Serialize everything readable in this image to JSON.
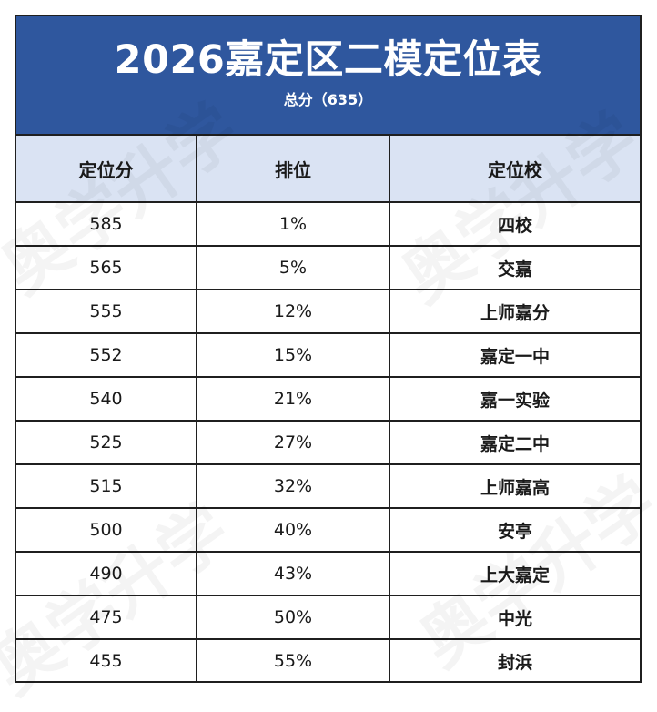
{
  "header": {
    "title": "2026嘉定区二模定位表",
    "subtitle": "总分（635）"
  },
  "table": {
    "columns": [
      "定位分",
      "排位",
      "定位校"
    ],
    "rows": [
      {
        "score": "585",
        "rank": "1%",
        "school": "四校"
      },
      {
        "score": "565",
        "rank": "5%",
        "school": "交嘉"
      },
      {
        "score": "555",
        "rank": "12%",
        "school": "上师嘉分"
      },
      {
        "score": "552",
        "rank": "15%",
        "school": "嘉定一中"
      },
      {
        "score": "540",
        "rank": "21%",
        "school": "嘉一实验"
      },
      {
        "score": "525",
        "rank": "27%",
        "school": "嘉定二中"
      },
      {
        "score": "515",
        "rank": "32%",
        "school": "上师嘉高"
      },
      {
        "score": "500",
        "rank": "40%",
        "school": "安亭"
      },
      {
        "score": "490",
        "rank": "43%",
        "school": "上大嘉定"
      },
      {
        "score": "475",
        "rank": "50%",
        "school": "中光"
      },
      {
        "score": "455",
        "rank": "55%",
        "school": "封浜"
      }
    ]
  },
  "watermark": {
    "text": "奥学升学"
  }
}
